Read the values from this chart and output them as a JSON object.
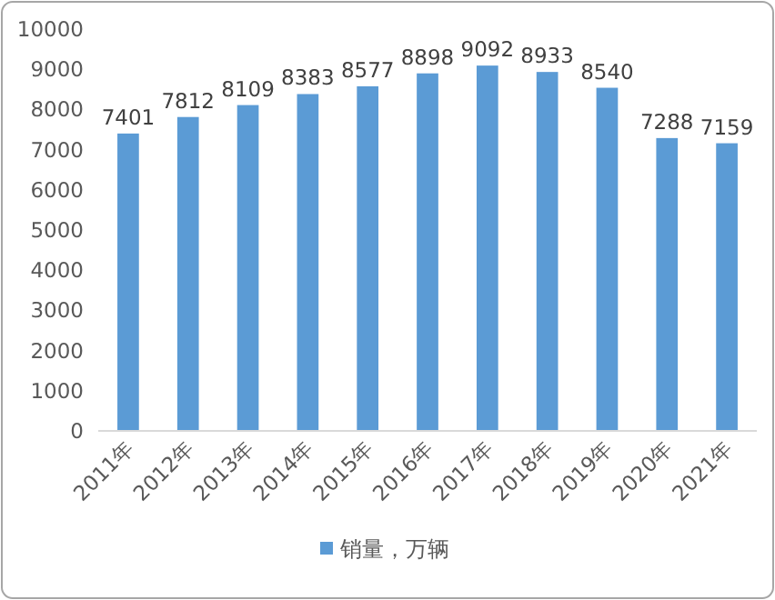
{
  "chart_data": {
    "type": "bar",
    "categories": [
      "2011年",
      "2012年",
      "2013年",
      "2014年",
      "2015年",
      "2016年",
      "2017年",
      "2018年",
      "2019年",
      "2020年",
      "2021年"
    ],
    "series": [
      {
        "name": "销量，万辆",
        "color": "#5b9bd5",
        "values": [
          7401,
          7812,
          8109,
          8383,
          8577,
          8898,
          9092,
          8933,
          8540,
          7288,
          7159
        ]
      }
    ],
    "ylim": [
      0,
      10000
    ],
    "yticks": [
      0,
      1000,
      2000,
      3000,
      4000,
      5000,
      6000,
      7000,
      8000,
      9000,
      10000
    ],
    "data_labels": true,
    "legend": "bottom",
    "grid": false
  }
}
